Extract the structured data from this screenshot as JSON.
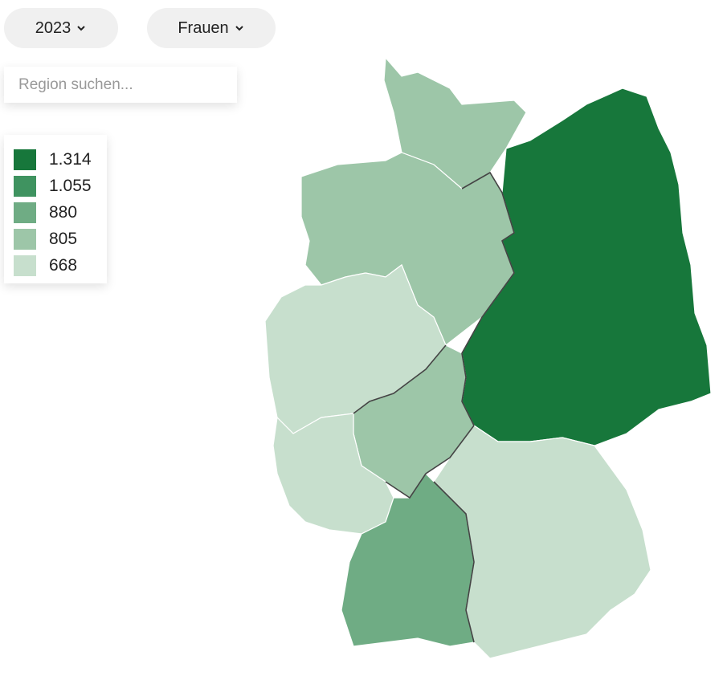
{
  "filters": {
    "year": "2023",
    "gender": "Frauen"
  },
  "search": {
    "placeholder": "Region suchen..."
  },
  "legend": {
    "items": [
      {
        "label": "1.314",
        "color": "#17773b"
      },
      {
        "label": "1.055",
        "color": "#3f9360"
      },
      {
        "label": "880",
        "color": "#6fac84"
      },
      {
        "label": "805",
        "color": "#9dc6a8"
      },
      {
        "label": "668",
        "color": "#c7dfcd"
      }
    ]
  }
}
